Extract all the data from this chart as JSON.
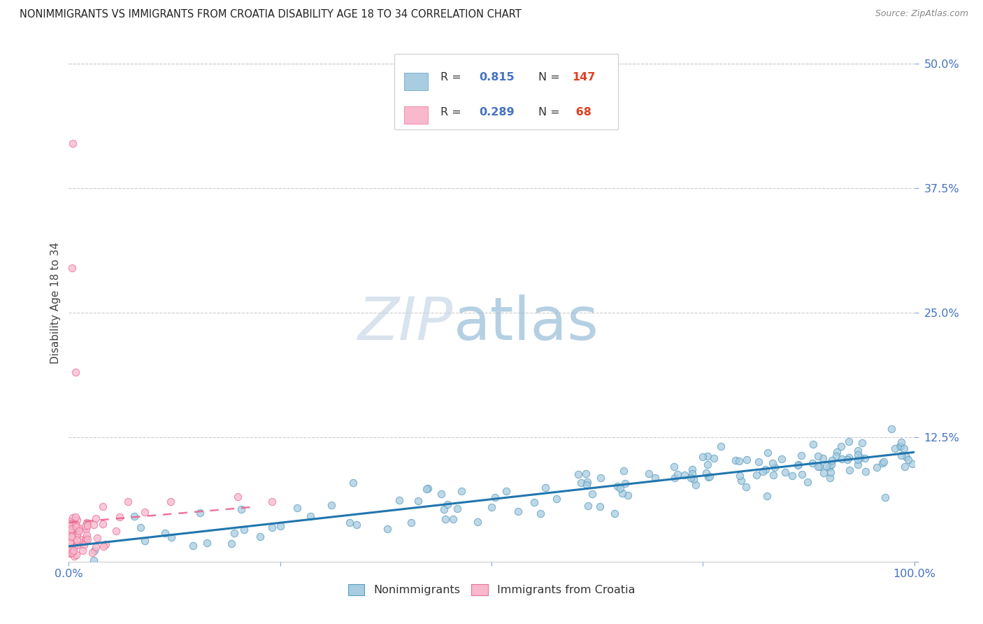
{
  "title": "NONIMMIGRANTS VS IMMIGRANTS FROM CROATIA DISABILITY AGE 18 TO 34 CORRELATION CHART",
  "source": "Source: ZipAtlas.com",
  "ylabel": "Disability Age 18 to 34",
  "blue_R": 0.815,
  "blue_N": 147,
  "pink_R": 0.289,
  "pink_N": 68,
  "blue_color": "#a8cce0",
  "blue_edge_color": "#5a9fc0",
  "pink_color": "#f9b8cc",
  "pink_edge_color": "#e87098",
  "blue_line_color": "#2176ae",
  "pink_line_color": "#e8608a",
  "text_color_blue": "#4472c4",
  "text_color_dark": "#333333",
  "watermark_zip_color": "#c8d8e8",
  "watermark_atlas_color": "#98bcd8",
  "grid_color": "#cccccc",
  "legend_labels": [
    "Nonimmigrants",
    "Immigrants from Croatia"
  ],
  "ylim_max": 0.52,
  "xlim_max": 1.0,
  "yticks": [
    0.0,
    0.125,
    0.25,
    0.375,
    0.5
  ]
}
